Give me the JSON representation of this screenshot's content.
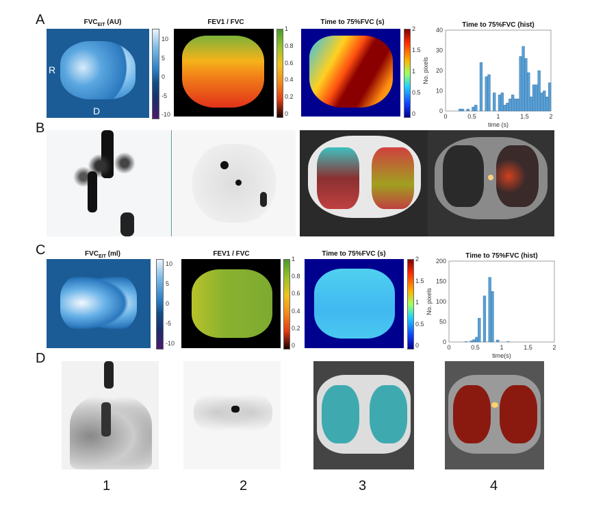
{
  "panels": {
    "A": "A",
    "B": "B",
    "C": "C",
    "D": "D"
  },
  "row_a": {
    "fvc_title": "FVC",
    "fvc_sub": "EIT",
    "fvc_unit": " (AU)",
    "fvc_ticks": [
      "10",
      "5",
      "0",
      "-5",
      "-10"
    ],
    "lung_labels": {
      "right": "R",
      "dependent": "D"
    },
    "ratio_title": "FEV1 / FVC",
    "ratio_ticks": [
      "1",
      "0.8",
      "0.6",
      "0.4",
      "0.2",
      "0"
    ],
    "time_title": "Time to 75%FVC (s)",
    "time_ticks": [
      "2",
      "1.5",
      "1",
      "0.5",
      "0"
    ]
  },
  "row_c": {
    "fvc_title": "FVC",
    "fvc_sub": "EIT",
    "fvc_unit": " (ml)",
    "fvc_ticks": [
      "10",
      "5",
      "0",
      "-5",
      "-10"
    ],
    "ratio_title": "FEV1 / FVC",
    "ratio_ticks": [
      "1",
      "0.8",
      "0.6",
      "0.4",
      "0.2",
      "0"
    ],
    "time_title": "Time to 75%FVC (s)",
    "time_ticks": [
      "2",
      "1.5",
      "1",
      "0.5",
      "0"
    ]
  },
  "column_numbers": [
    "1",
    "2",
    "3",
    "4"
  ],
  "colors": {
    "bar": "#5a9fd4",
    "bar_edge": "#2d6d9e"
  },
  "chart_data": [
    {
      "type": "bar",
      "title": "Time to 75%FVC (hist)",
      "xlabel": "time (s)",
      "ylabel": "No. pixels",
      "xlim": [
        0,
        2
      ],
      "ylim": [
        0,
        40
      ],
      "xticks": [
        "0",
        "0.5",
        "1",
        "1.5",
        "2"
      ],
      "yticks": [
        "0",
        "10",
        "20",
        "30",
        "40"
      ],
      "bin_width": 0.05,
      "values": [
        0,
        0,
        0,
        0,
        0,
        1,
        1,
        0,
        1,
        0,
        2,
        3,
        0,
        24,
        0,
        17,
        18,
        0,
        9,
        0,
        8,
        9,
        3,
        4,
        6,
        8,
        6,
        6,
        27,
        32,
        26,
        19,
        7,
        13,
        13,
        20,
        9,
        10,
        7,
        14
      ]
    },
    {
      "type": "bar",
      "title": "Time to 75%FVC (hist)",
      "xlabel": "time(s)",
      "ylabel": "No. pixels",
      "xlim": [
        0,
        2
      ],
      "ylim": [
        0,
        200
      ],
      "xticks": [
        "0",
        "0.5",
        "1",
        "1.5",
        "2"
      ],
      "yticks": [
        "0",
        "50",
        "100",
        "150",
        "200"
      ],
      "bin_width": 0.05,
      "values": [
        0,
        0,
        0,
        0,
        0,
        0,
        1,
        0,
        3,
        6,
        12,
        59,
        0,
        114,
        0,
        160,
        125,
        0,
        5,
        0,
        0,
        0,
        1,
        0,
        0,
        0,
        0,
        0,
        0,
        0,
        0,
        0,
        0,
        0,
        0,
        0,
        0,
        0,
        0,
        0
      ]
    }
  ]
}
